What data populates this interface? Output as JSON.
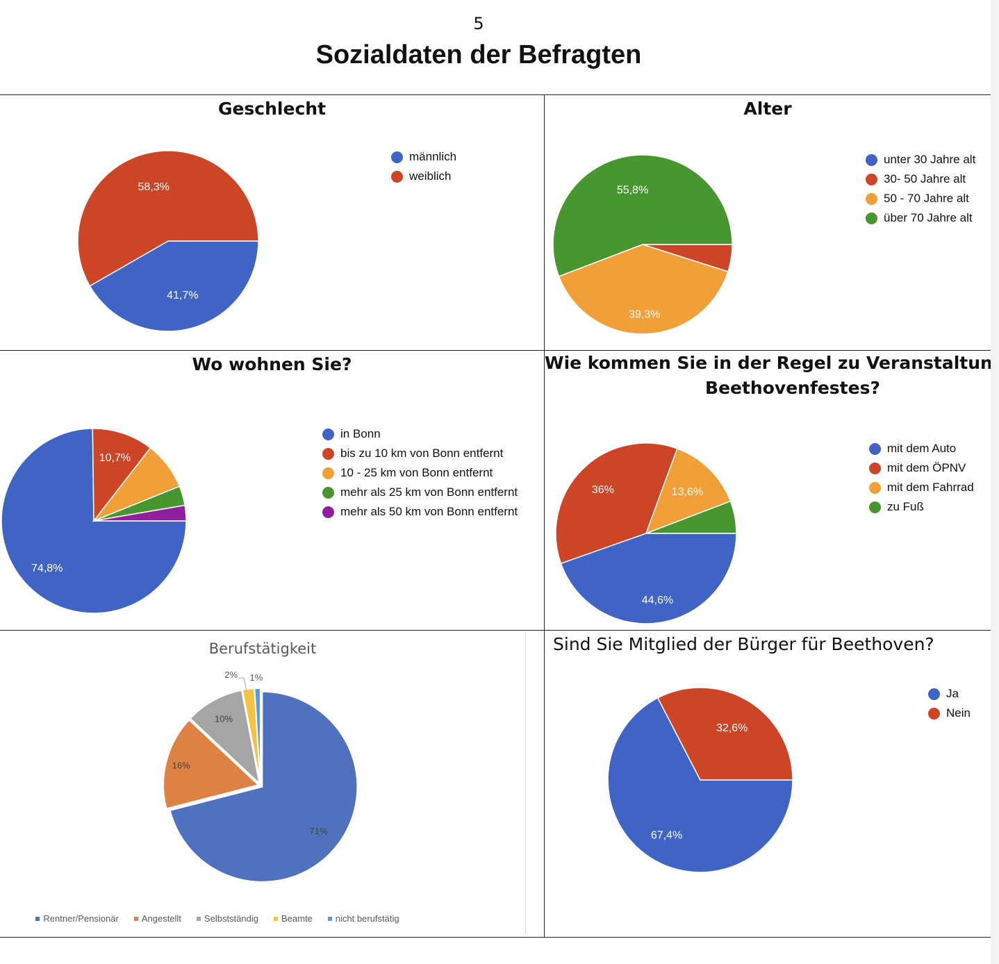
{
  "page_number": "5",
  "title": "Sozialdaten der Befragten",
  "chart_data": [
    {
      "id": "geschlecht",
      "type": "pie",
      "title": "Geschlecht",
      "style": "google",
      "categories": [
        "männlich",
        "weiblich"
      ],
      "values": [
        41.7,
        58.3
      ],
      "labels": [
        "41,7%",
        "58,3%"
      ],
      "colors": [
        "#3f64c6",
        "#cc4527"
      ],
      "legend": "right"
    },
    {
      "id": "alter",
      "type": "pie",
      "title": "Alter",
      "style": "google",
      "categories": [
        "unter 30 Jahre alt",
        "30- 50 Jahre alt",
        "50 - 70 Jahre alt",
        "über 70 Jahre alt"
      ],
      "values": [
        0,
        4.9,
        39.3,
        55.8
      ],
      "labels": [
        "",
        "",
        "39,3%",
        "55,8%"
      ],
      "colors": [
        "#3f64c6",
        "#cc4527",
        "#f19f38",
        "#47962f"
      ],
      "legend": "right"
    },
    {
      "id": "wohnort",
      "type": "pie",
      "title": "Wo wohnen Sie?",
      "style": "google",
      "categories": [
        "in Bonn",
        "bis zu 10 km von Bonn entfernt",
        "10 - 25 km von Bonn entfernt",
        "mehr als 25 km von Bonn entfernt",
        "mehr als 50 km von Bonn entfernt"
      ],
      "values": [
        74.8,
        10.7,
        8.4,
        3.4,
        2.7
      ],
      "labels": [
        "74,8%",
        "10,7%",
        "",
        "",
        ""
      ],
      "colors": [
        "#3f64c6",
        "#cc4527",
        "#f19f38",
        "#47962f",
        "#8e1f9e"
      ],
      "legend": "right"
    },
    {
      "id": "anreise",
      "type": "pie",
      "title": "Wie kommen Sie in der Regel zu Veranstaltungen des Beethovenfestes?",
      "title_lines": [
        "Wie kommen Sie in der Regel zu Veranstaltungen des",
        "Beethovenfestes?"
      ],
      "style": "google",
      "categories": [
        "mit dem Auto",
        "mit dem ÖPNV",
        "mit dem Fahrrad",
        "zu Fuß"
      ],
      "values": [
        44.6,
        36,
        13.6,
        5.8
      ],
      "labels": [
        "44,6%",
        "36%",
        "13,6%",
        ""
      ],
      "colors": [
        "#3f64c6",
        "#cc4527",
        "#f19f38",
        "#47962f"
      ],
      "legend": "right"
    },
    {
      "id": "beruf",
      "type": "pie",
      "title": "Berufstätigkeit",
      "style": "excel",
      "categories": [
        "Rentner/Pensionär",
        "Angestellt",
        "Selbstständig",
        "Beamte",
        "nicht berufstätig"
      ],
      "values": [
        71,
        16,
        10,
        2,
        1
      ],
      "labels": [
        "71%",
        "16%",
        "10%",
        "2%",
        "1%"
      ],
      "colors": [
        "#4f71be",
        "#dd8242",
        "#a5a5a5",
        "#f7c142",
        "#5b9bd5"
      ],
      "legend": "bottom"
    },
    {
      "id": "mitglied",
      "type": "pie",
      "title": "Sind Sie Mitglied der Bürger für Beethoven?",
      "style": "google",
      "categories": [
        "Ja",
        "Nein"
      ],
      "values": [
        67.4,
        32.6
      ],
      "labels": [
        "67,4%",
        "32,6%"
      ],
      "colors": [
        "#3f64c6",
        "#cc4527"
      ],
      "legend": "right"
    }
  ]
}
